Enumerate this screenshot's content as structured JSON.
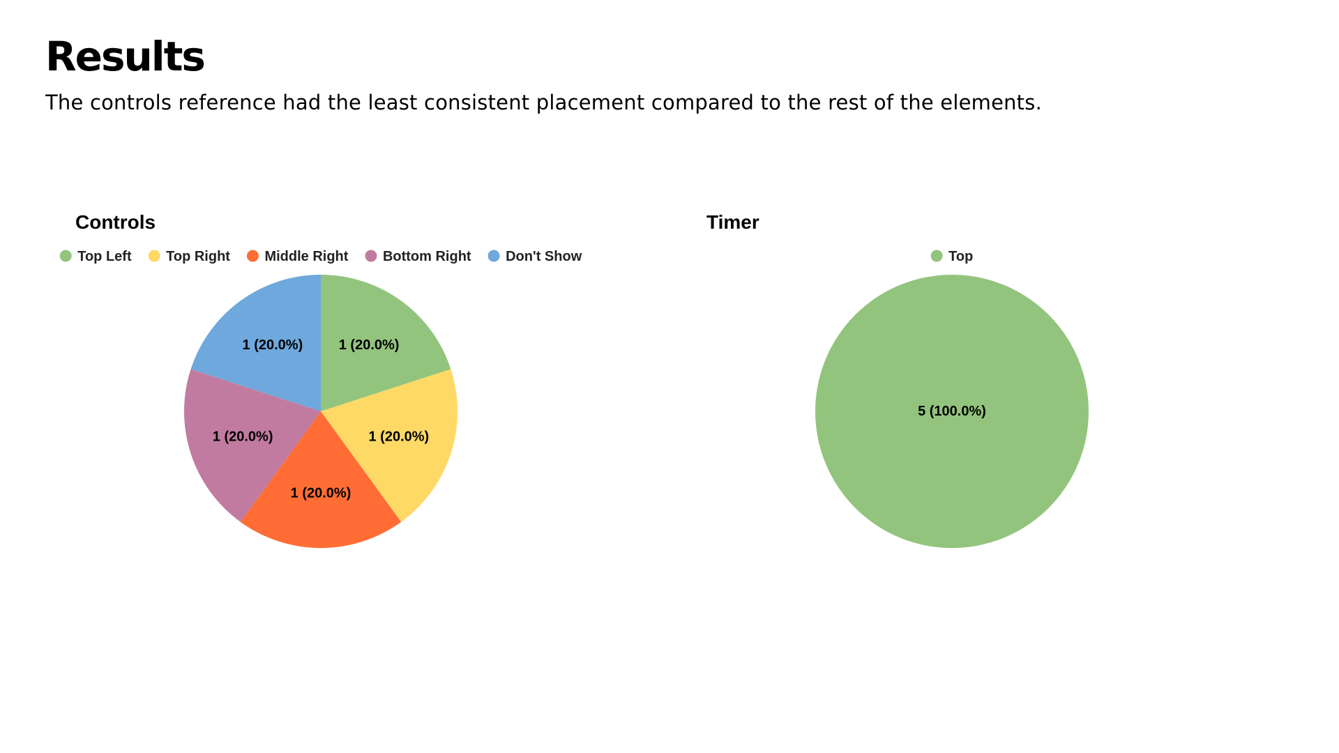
{
  "page": {
    "title": "Results",
    "subtitle": "The controls reference had the least consistent placement compared to the rest of the elements."
  },
  "chart_data": [
    {
      "type": "pie",
      "title": "Controls",
      "legend_position": "top",
      "start_angle": "12 o'clock, clockwise",
      "slices": [
        {
          "label": "Top Left",
          "value": 1,
          "percent": 20.0,
          "display": "1 (20.0%)",
          "color": "#93c47d"
        },
        {
          "label": "Top Right",
          "value": 1,
          "percent": 20.0,
          "display": "1 (20.0%)",
          "color": "#ffd966"
        },
        {
          "label": "Middle Right",
          "value": 1,
          "percent": 20.0,
          "display": "1 (20.0%)",
          "color": "#ff6d35"
        },
        {
          "label": "Bottom Right",
          "value": 1,
          "percent": 20.0,
          "display": "1 (20.0%)",
          "color": "#c27ba0"
        },
        {
          "label": "Don't Show",
          "value": 1,
          "percent": 20.0,
          "display": "1 (20.0%)",
          "color": "#6fa8dc"
        }
      ]
    },
    {
      "type": "pie",
      "title": "Timer",
      "legend_position": "top",
      "start_angle": "12 o'clock, clockwise",
      "slices": [
        {
          "label": "Top",
          "value": 5,
          "percent": 100.0,
          "display": "5 (100.0%)",
          "color": "#93c47d"
        }
      ]
    }
  ]
}
